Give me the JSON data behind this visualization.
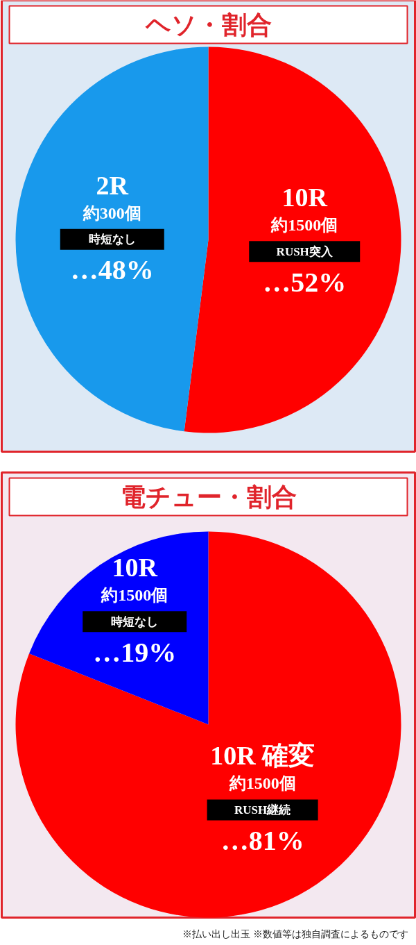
{
  "chart_data": [
    {
      "type": "pie",
      "title": "ヘソ・割合",
      "categories": [
        "10R",
        "2R"
      ],
      "values": [
        52,
        48
      ],
      "colors": [
        "#ff0000",
        "#1899ec"
      ],
      "value_labels": [
        "…52%",
        "…48%"
      ],
      "annotations": [
        "約1500個",
        "RUSH突入",
        "約300個",
        "時短なし"
      ]
    },
    {
      "type": "pie",
      "title": "電チュー・割合",
      "categories": [
        "10R 確変",
        "10R"
      ],
      "values": [
        81,
        19
      ],
      "colors": [
        "#ff0000",
        "#0000ff"
      ],
      "value_labels": [
        "…81%",
        "…19%"
      ],
      "annotations": [
        "約1500個",
        "RUSH継続",
        "約1500個",
        "時短なし",
        "※払い出し出玉 ※数値等は独自調査によるものです"
      ]
    }
  ]
}
